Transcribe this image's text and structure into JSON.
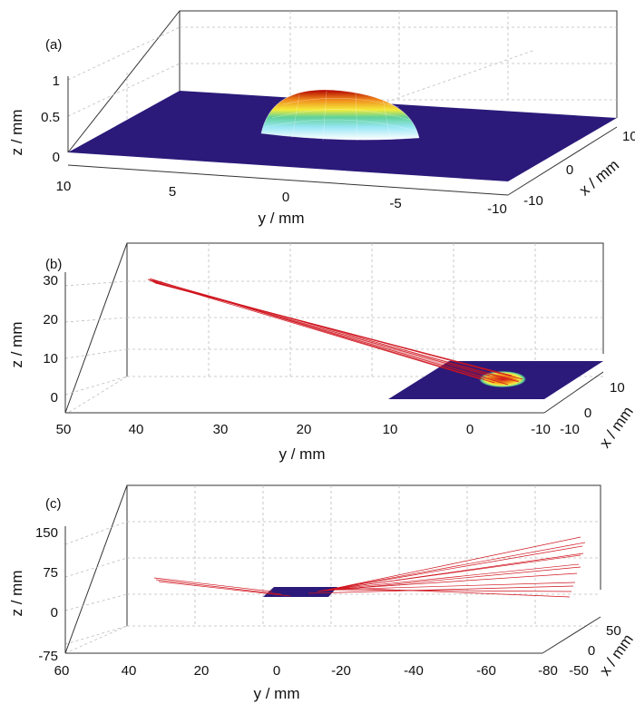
{
  "chart_data": [
    {
      "type": "surface",
      "panel_label": "(a)",
      "title": "",
      "xlabel": "x / mm",
      "ylabel": "y / mm",
      "zlabel": "z / mm",
      "x_ticks": [
        -10,
        0,
        10
      ],
      "y_ticks": [
        10,
        5,
        0,
        -5,
        -10
      ],
      "z_ticks": [
        0,
        0.5,
        1
      ],
      "xlim": [
        -10,
        10
      ],
      "ylim": [
        -10,
        10
      ],
      "zlim": [
        0,
        1
      ],
      "grid": true,
      "surface": {
        "shape": "spherical cap on flat plane",
        "cap_radius": 5,
        "cap_peak_z": 0.95,
        "plane_z": 0
      },
      "colors": {
        "plane": "#2b1a7a",
        "cap_low": "#ffffff",
        "cap_high": "#b00000"
      }
    },
    {
      "type": "surface",
      "panel_label": "(b)",
      "title": "",
      "xlabel": "x / mm",
      "ylabel": "y / mm",
      "zlabel": "z / mm",
      "x_ticks": [
        -10,
        0,
        10
      ],
      "y_ticks": [
        50,
        40,
        30,
        20,
        10,
        0,
        -10
      ],
      "z_ticks": [
        0,
        10,
        20,
        30
      ],
      "xlim": [
        -10,
        10
      ],
      "ylim": [
        -10,
        50
      ],
      "zlim": [
        -5,
        30
      ],
      "grid": true,
      "ray_bundle": {
        "from": {
          "y": 40,
          "z": 30
        },
        "to": {
          "y": 0,
          "z": 0
        },
        "color": "#d0141e"
      },
      "colors": {
        "plane": "#2b1a7a",
        "spot": "#d0141e"
      }
    },
    {
      "type": "surface",
      "panel_label": "(c)",
      "title": "",
      "xlabel": "x / mm",
      "ylabel": "y / mm",
      "zlabel": "z / mm",
      "x_ticks": [
        -50,
        0,
        50
      ],
      "y_ticks": [
        60,
        40,
        20,
        0,
        -20,
        -40,
        -60,
        -80
      ],
      "z_ticks": [
        -75,
        0,
        75,
        150
      ],
      "xlim": [
        -50,
        50
      ],
      "ylim": [
        -80,
        60
      ],
      "zlim": [
        -75,
        150
      ],
      "grid": true,
      "ray_bundle": {
        "from": {
          "y": 45,
          "z": 30
        },
        "to": {
          "y": -80,
          "z": 60
        },
        "color": "#d0141e"
      },
      "colors": {
        "plane": "#2b1a7a"
      }
    }
  ]
}
